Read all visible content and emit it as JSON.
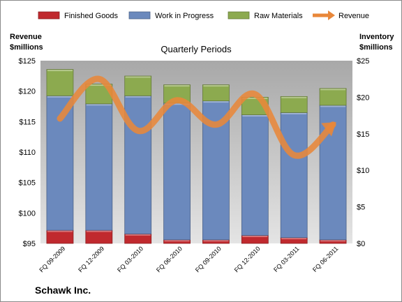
{
  "chart_data": {
    "type": "bar",
    "stacked": true,
    "title": "Quarterly Periods",
    "company": "Schawk Inc.",
    "left_axis_label_line1": "Revenue",
    "left_axis_label_line2": "$millions",
    "right_axis_label_line1": "Inventory",
    "right_axis_label_line2": "$millions",
    "categories": [
      "FQ 09-2009",
      "FQ 12-2009",
      "FQ 03-2010",
      "FQ 06-2010",
      "FQ 09-2010",
      "FQ 12-2010",
      "FQ 03-2011",
      "FQ 06-2011"
    ],
    "left_ticks": [
      "$95",
      "$100",
      "$105",
      "$110",
      "$115",
      "$120",
      "$125"
    ],
    "right_ticks": [
      "$0",
      "$5",
      "$10",
      "$15",
      "$20",
      "$25"
    ],
    "left_ylim": [
      95,
      125
    ],
    "right_ylim": [
      0,
      25
    ],
    "legend_position": "top",
    "grid": false,
    "series": [
      {
        "name": "Finished Goods",
        "axis": "right",
        "color": "#c0292e",
        "values": [
          1.8,
          1.8,
          1.3,
          0.5,
          0.5,
          1.1,
          0.8,
          0.5
        ]
      },
      {
        "name": "Work in Progress",
        "axis": "right",
        "color": "#6b89bd",
        "values": [
          18.4,
          17.3,
          18.9,
          18.7,
          19.0,
          16.5,
          17.1,
          18.4
        ]
      },
      {
        "name": "Raw Materials",
        "axis": "right",
        "color": "#8caa4f",
        "values": [
          3.6,
          2.7,
          2.7,
          2.5,
          2.2,
          2.4,
          2.2,
          2.3
        ]
      },
      {
        "name": "Revenue",
        "axis": "left",
        "type": "line",
        "color": "#e8873a",
        "values": [
          115.5,
          122.0,
          113.5,
          118.5,
          114.5,
          119.5,
          109.5,
          114.5
        ]
      }
    ]
  }
}
